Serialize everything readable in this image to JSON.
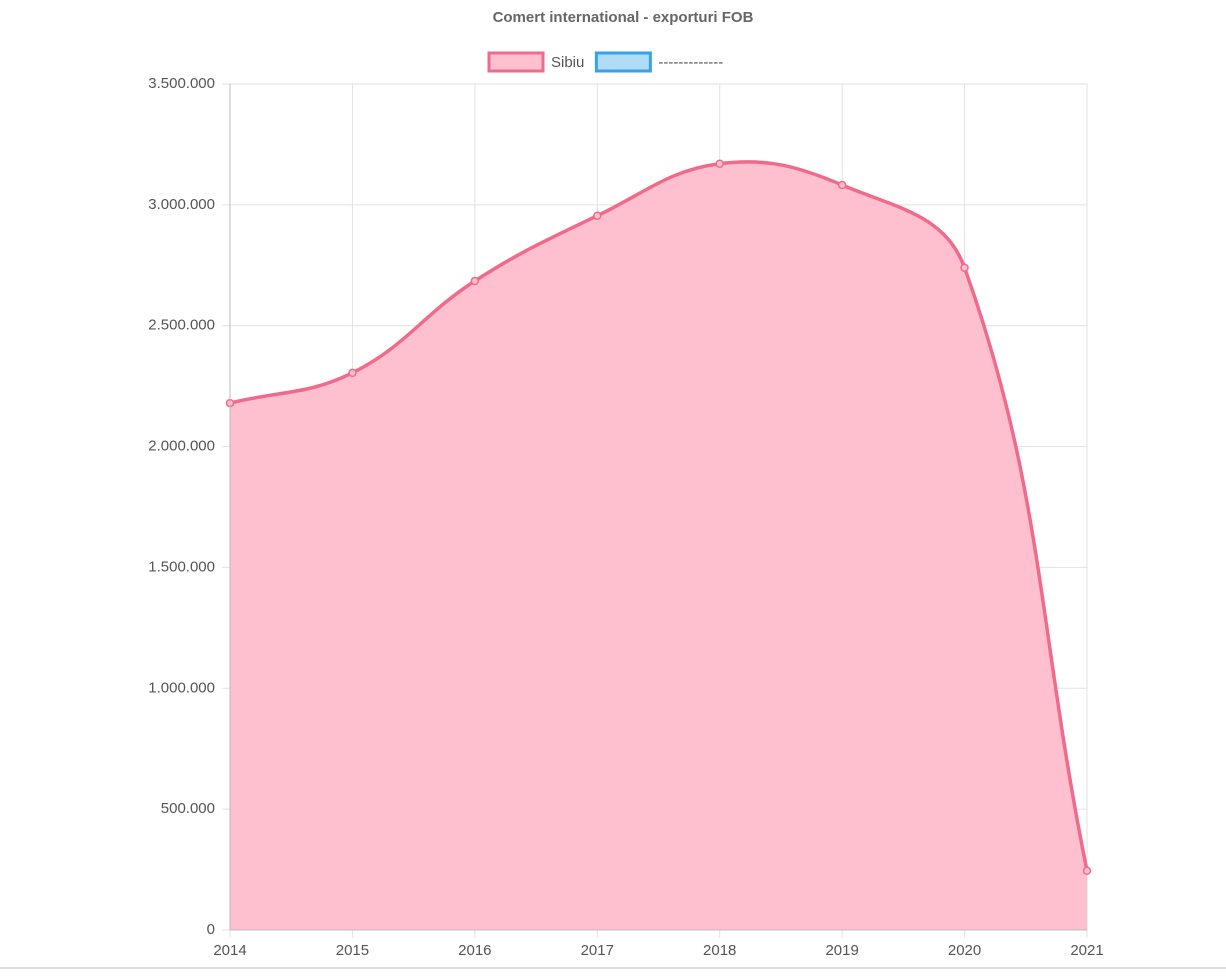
{
  "chart_data": {
    "type": "line",
    "title": "Comert international - exporturi FOB",
    "categories": [
      "2014",
      "2015",
      "2016",
      "2017",
      "2018",
      "2019",
      "2020",
      "2021"
    ],
    "series": [
      {
        "name": "Sibiu",
        "color": "#f06b8b",
        "fill": "#fec0cf",
        "values": [
          2180000,
          2305000,
          2685000,
          2955000,
          3170000,
          3082000,
          2740000,
          245000
        ]
      },
      {
        "name": "-------------",
        "color": "#36a2eb",
        "fill": "#b0dcf7",
        "values": [
          null,
          null,
          null,
          null,
          null,
          null,
          null,
          null
        ]
      }
    ],
    "ylim": [
      0,
      3500000
    ],
    "yticks": [
      0,
      {
        "value": 500000,
        "label": "500.000"
      },
      {
        "value": 1000000,
        "label": "1.000.000"
      },
      {
        "value": 1500000,
        "label": "1.500.000"
      },
      {
        "value": 2000000,
        "label": "2.000.000"
      },
      {
        "value": 2500000,
        "label": "2.500.000"
      },
      {
        "value": 3000000,
        "label": "3.000.000"
      },
      {
        "value": 3500000,
        "label": "3.500.000"
      }
    ],
    "grid": true
  }
}
